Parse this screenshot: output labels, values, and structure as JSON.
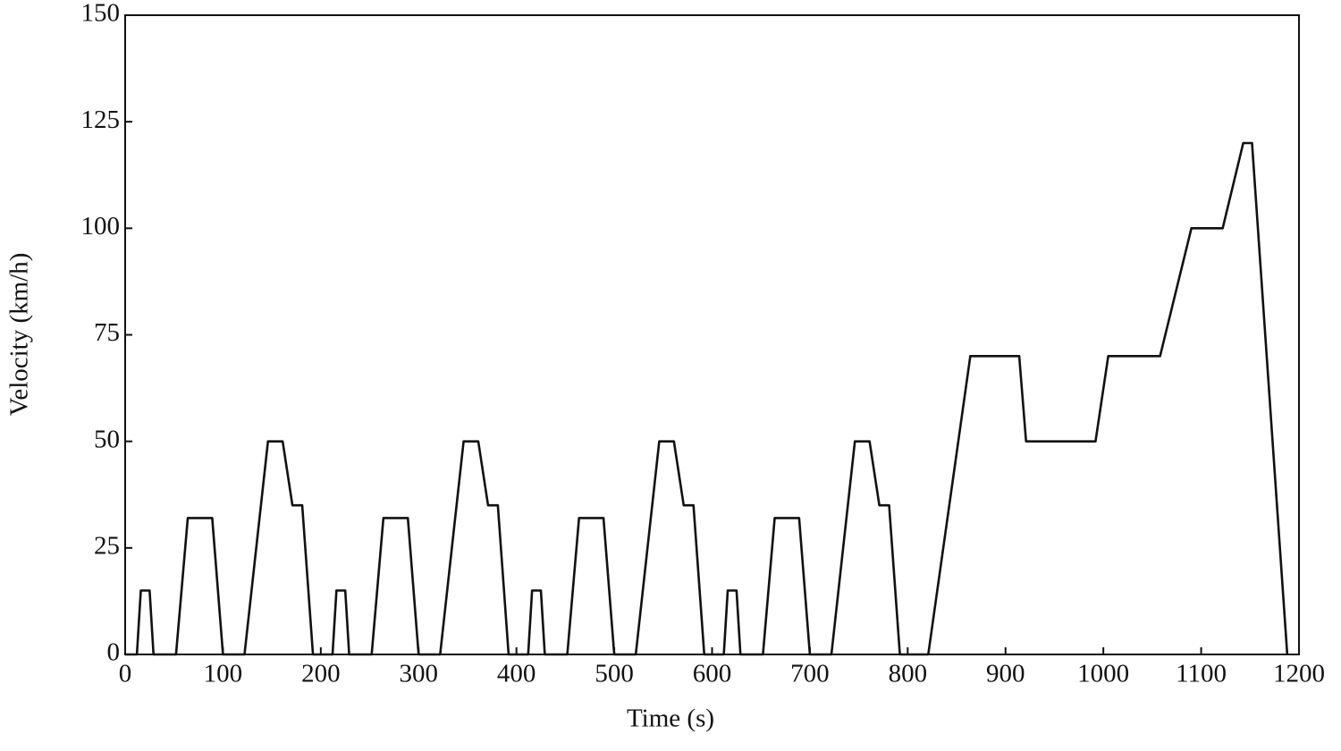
{
  "chart_data": {
    "type": "line",
    "xlabel": "Time (s)",
    "ylabel": "Velocity (km/h)",
    "x": [
      0,
      12,
      16,
      25,
      29,
      52,
      64,
      89,
      100,
      122,
      146,
      161,
      171,
      181,
      192,
      200,
      212,
      216,
      225,
      229,
      252,
      264,
      289,
      300,
      322,
      346,
      361,
      371,
      381,
      392,
      400,
      412,
      416,
      425,
      429,
      452,
      464,
      489,
      500,
      522,
      546,
      561,
      571,
      581,
      592,
      600,
      612,
      616,
      625,
      629,
      652,
      664,
      689,
      700,
      722,
      746,
      761,
      771,
      781,
      792,
      821,
      864,
      914,
      921,
      992,
      1005,
      1058,
      1090,
      1122,
      1143,
      1152,
      1188
    ],
    "values": [
      0,
      0,
      15,
      15,
      0,
      0,
      32,
      32,
      0,
      0,
      50,
      50,
      35,
      35,
      0,
      0,
      0,
      15,
      15,
      0,
      0,
      32,
      32,
      0,
      0,
      50,
      50,
      35,
      35,
      0,
      0,
      0,
      15,
      15,
      0,
      0,
      32,
      32,
      0,
      0,
      50,
      50,
      35,
      35,
      0,
      0,
      0,
      15,
      15,
      0,
      0,
      32,
      32,
      0,
      0,
      50,
      50,
      35,
      35,
      0,
      0,
      70,
      70,
      50,
      50,
      70,
      70,
      100,
      100,
      120,
      120,
      0
    ],
    "color": "#111111",
    "xlim": [
      0,
      1200
    ],
    "xticks": [
      0,
      100,
      200,
      300,
      400,
      500,
      600,
      700,
      800,
      900,
      1000,
      1100,
      1200
    ],
    "ylim": [
      0,
      150
    ],
    "yticks": [
      0,
      25,
      50,
      75,
      100,
      125,
      150
    ]
  }
}
